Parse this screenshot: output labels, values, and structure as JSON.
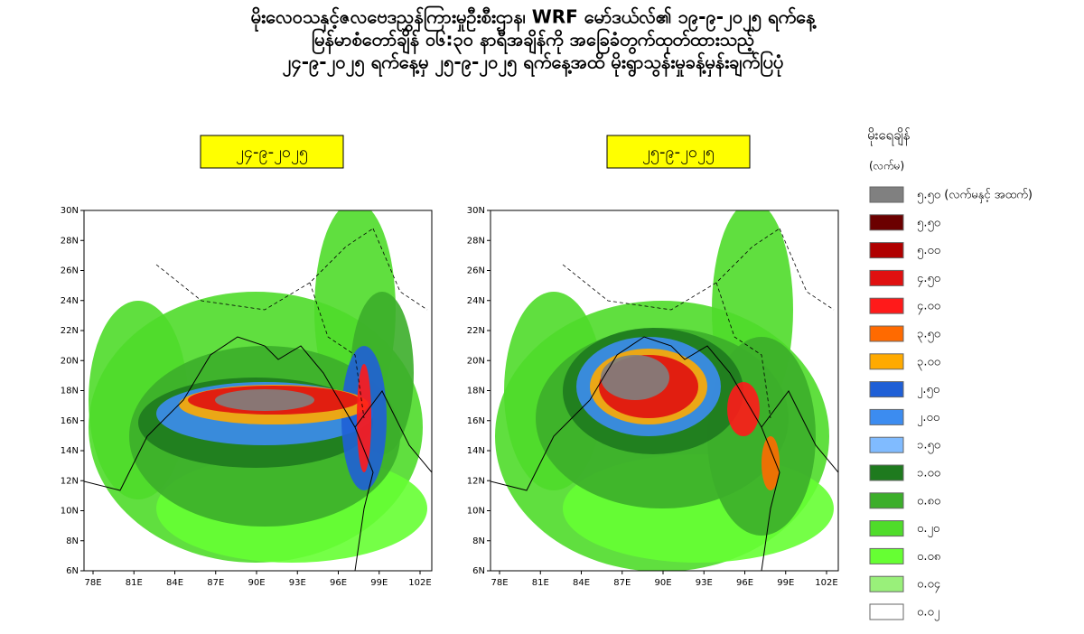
{
  "header": {
    "title": [
      "မိုးလေဝသနှင့်ဇလဗေဒညွှန်ကြားမှုဦးစီးဌာန၊ WRF မော်ဒယ်လ်၏ ၁၉-၉-၂၀၂၅ ရက်နေ့",
      "မြန်မာစံတော်ချိန် ၀၆:၃၀ နာရီအချိန်ကို အခြေခံတွက်ထုတ်ထားသည့်",
      "၂၄-၉-၂၀၂၅ ရက်နေ့မှ ၂၅-၉-၂၀၂၅ ရက်နေ့အထိ မိုးရွာသွန်းမှုခန့်မှန်းချက်ပြပုံ"
    ]
  },
  "panels": [
    {
      "label": "၂၄-၉-၂၀၂၅"
    },
    {
      "label": "၂၅-၉-၂၀၂၅"
    }
  ],
  "axes": {
    "lat": [
      "30N",
      "28N",
      "26N",
      "24N",
      "22N",
      "20N",
      "18N",
      "16N",
      "14N",
      "12N",
      "10N",
      "8N",
      "6N"
    ],
    "lon": [
      "78E",
      "81E",
      "84E",
      "87E",
      "90E",
      "93E",
      "96E",
      "99E",
      "102E"
    ]
  },
  "legend": {
    "title": "မိုးရေချိန်",
    "unit": "(လက်မ)",
    "items": [
      {
        "label": "၅.၅၀ (လက်မနှင့် အထက်)",
        "color": "#808080"
      },
      {
        "label": "၅.၅၀",
        "color": "#6b0000"
      },
      {
        "label": "၅.၀၀",
        "color": "#b00000"
      },
      {
        "label": "၄.၅၀",
        "color": "#e01010"
      },
      {
        "label": "၄.၀၀",
        "color": "#ff1a1a"
      },
      {
        "label": "၃.၅၀",
        "color": "#ff6a00"
      },
      {
        "label": "၃.၀၀",
        "color": "#ffaa00"
      },
      {
        "label": "၂.၅၀",
        "color": "#1f5fd6"
      },
      {
        "label": "၂.၀၀",
        "color": "#3c8cf0"
      },
      {
        "label": "၁.၅၀",
        "color": "#80bbff"
      },
      {
        "label": "၁.၀၀",
        "color": "#1e7a1e"
      },
      {
        "label": "၀.၈၀",
        "color": "#3cae2a"
      },
      {
        "label": "၀.၂၀",
        "color": "#4fdc2a"
      },
      {
        "label": "၀.၀၈",
        "color": "#66ff33"
      },
      {
        "label": "၀.၀၄",
        "color": "#99f07a"
      },
      {
        "label": "၀.၀၂",
        "color": "#ffffff"
      }
    ]
  }
}
